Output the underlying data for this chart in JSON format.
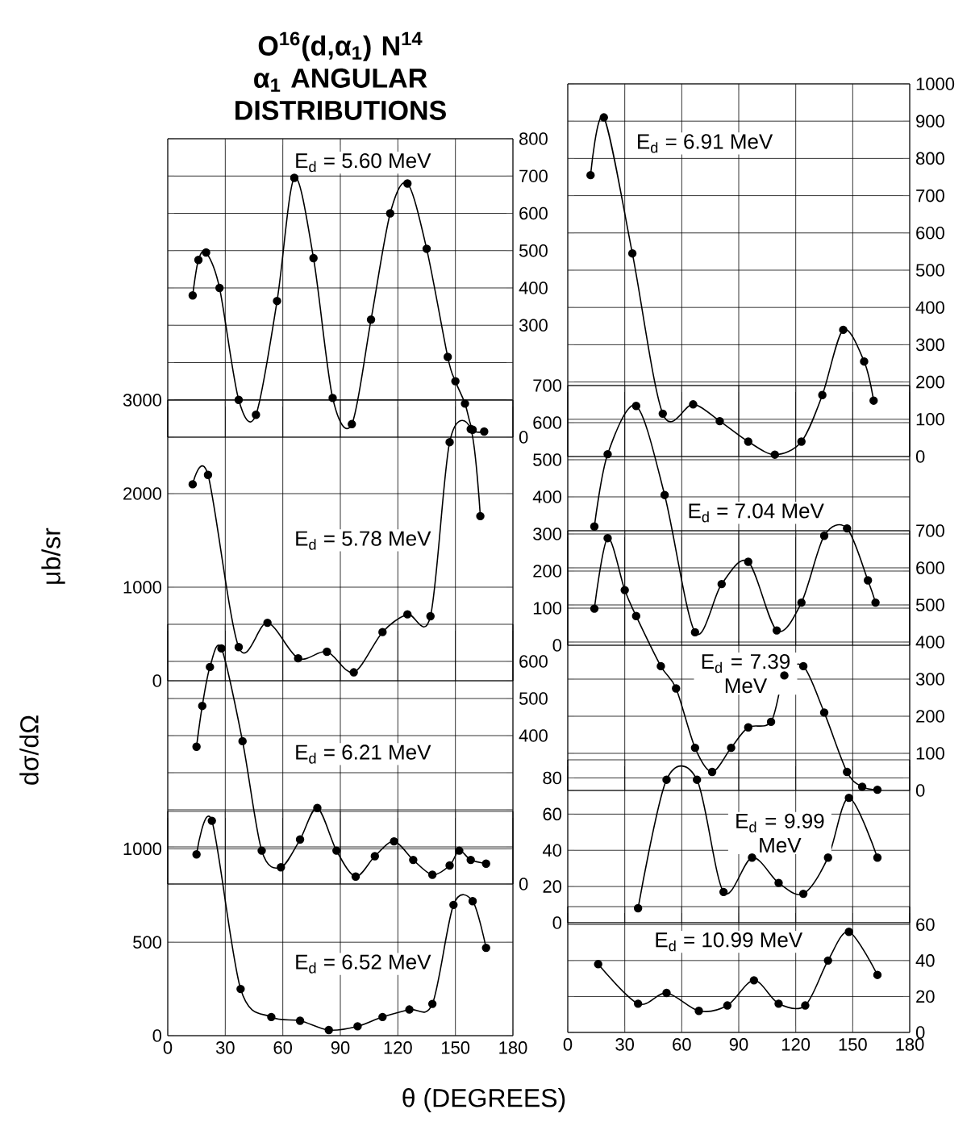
{
  "chart_data": [
    {
      "type": "line",
      "title": "O$^{16}$(d,α$_{1}$) N$^{14}$",
      "subtitle": "α$_{1}$ ANGULAR DISTRIBUTIONS",
      "annotations": [
        "E$_{d}$ = 5.60 MeV"
      ],
      "marker": "circle",
      "grid": true,
      "tick_labels": "y",
      "xlim": [
        0,
        180
      ],
      "xticks": [
        0,
        30,
        60,
        90,
        120,
        150,
        180
      ],
      "y2lim": [
        0,
        800
      ],
      "y2ticks": [
        0,
        {
          "value": 100,
          "label": null
        },
        {
          "value": 200,
          "label": null
        },
        300,
        400,
        500,
        600,
        700,
        800
      ],
      "series": [
        {
          "color": "#000000",
          "axis": "y2",
          "x": [
            13,
            16,
            20,
            27,
            37,
            46,
            57,
            66,
            76,
            86,
            96,
            106,
            116,
            125,
            135,
            146,
            150,
            155,
            159,
            165
          ],
          "values": [
            380,
            475,
            495,
            400,
            100,
            60,
            365,
            695,
            480,
            105,
            35,
            315,
            600,
            680,
            505,
            215,
            150,
            90,
            20,
            15
          ]
        }
      ]
    },
    {
      "type": "line",
      "ylabel": "μb/sr",
      "annotations": [
        "E$_{d}$ = 5.78 MeV"
      ],
      "marker": "circle",
      "grid": true,
      "tick_labels": "y",
      "xlim": [
        0,
        180
      ],
      "xticks": [
        0,
        30,
        60,
        90,
        120,
        150,
        180
      ],
      "ylim": [
        0,
        3000
      ],
      "yticks": [
        0,
        1000,
        2000,
        3000
      ],
      "series": [
        {
          "color": "#000000",
          "x": [
            13,
            21,
            37,
            52,
            68,
            83,
            97,
            112,
            125,
            137,
            147,
            158,
            163
          ],
          "values": [
            2100,
            2200,
            360,
            620,
            240,
            310,
            90,
            520,
            710,
            690,
            2550,
            2690,
            1760
          ]
        }
      ]
    },
    {
      "type": "line",
      "ylabel": "dσ/dΩ",
      "annotations": [
        "E$_{d}$ = 6.21 MeV"
      ],
      "marker": "circle",
      "grid": true,
      "tick_labels": "y",
      "xlim": [
        0,
        180
      ],
      "xticks": [
        0,
        30,
        60,
        90,
        120,
        150,
        180
      ],
      "y2lim": [
        0,
        700
      ],
      "y2ticks": [
        0,
        {
          "value": 100,
          "label": null
        },
        {
          "value": 200,
          "label": null
        },
        {
          "value": 300,
          "label": null
        },
        400,
        500,
        600
      ],
      "series": [
        {
          "color": "#000000",
          "axis": "y2",
          "x": [
            15,
            18,
            22,
            28,
            39,
            49,
            59,
            69,
            78,
            88,
            98,
            108,
            118,
            128,
            138,
            147,
            152,
            158,
            166
          ],
          "values": [
            370,
            480,
            585,
            635,
            385,
            90,
            45,
            120,
            205,
            90,
            20,
            75,
            115,
            65,
            25,
            50,
            90,
            65,
            55
          ]
        }
      ]
    },
    {
      "type": "line",
      "xlabel": "θ  (DEGREES)",
      "annotations": [
        "E$_{d}$ = 6.52 MeV"
      ],
      "marker": "circle",
      "grid": true,
      "xlim": [
        0,
        180
      ],
      "xticks": [
        0,
        30,
        60,
        90,
        120,
        150,
        180
      ],
      "ylim": [
        0,
        1200
      ],
      "yticks": [
        0,
        500,
        1000
      ],
      "series": [
        {
          "color": "#000000",
          "x": [
            15,
            23,
            38,
            54,
            69,
            84,
            99,
            112,
            126,
            138,
            149,
            159,
            166
          ],
          "values": [
            970,
            1150,
            250,
            100,
            80,
            30,
            50,
            100,
            140,
            170,
            700,
            720,
            470
          ]
        }
      ]
    },
    {
      "type": "line",
      "annotations": [
        "E$_{d}$ = 6.91 MeV"
      ],
      "marker": "circle",
      "grid": true,
      "tick_labels": "y",
      "xlim": [
        0,
        180
      ],
      "xticks": [
        0,
        30,
        60,
        90,
        120,
        150,
        180
      ],
      "y2lim": [
        0,
        1000
      ],
      "y2ticks": [
        0,
        100,
        200,
        300,
        400,
        500,
        600,
        700,
        800,
        900,
        1000
      ],
      "series": [
        {
          "color": "#000000",
          "axis": "y2",
          "x": [
            12,
            19,
            34,
            50,
            66,
            80,
            95,
            109,
            123,
            134,
            145,
            156,
            161
          ],
          "values": [
            755,
            910,
            545,
            115,
            140,
            95,
            40,
            5,
            40,
            165,
            340,
            255,
            150
          ]
        }
      ]
    },
    {
      "type": "line",
      "annotations": [
        "E$_{d}$ = 7.04 MeV"
      ],
      "marker": "circle",
      "grid": true,
      "tick_labels": "y",
      "xlim": [
        0,
        180
      ],
      "xticks": [
        0,
        30,
        60,
        90,
        120,
        150,
        180
      ],
      "ylim": [
        0,
        700
      ],
      "yticks": [
        0,
        100,
        200,
        300,
        400,
        500,
        600,
        700
      ],
      "series": [
        {
          "color": "#000000",
          "x": [
            14,
            21,
            36,
            51,
            67,
            81,
            95,
            110,
            123,
            135,
            147,
            158,
            162
          ],
          "values": [
            320,
            515,
            645,
            405,
            35,
            165,
            225,
            40,
            115,
            295,
            315,
            175,
            115
          ]
        }
      ]
    },
    {
      "type": "line",
      "annotations": [
        "E$_{d}$ = 7.39 MeV"
      ],
      "marker": "circle",
      "grid": true,
      "tick_labels": "y",
      "xlim": [
        0,
        180
      ],
      "xticks": [
        0,
        30,
        60,
        90,
        120,
        150,
        180
      ],
      "y2lim": [
        0,
        700
      ],
      "y2ticks": [
        0,
        100,
        200,
        300,
        400,
        500,
        600,
        700
      ],
      "series": [
        {
          "color": "#000000",
          "axis": "y2",
          "x": [
            14,
            21,
            30,
            36,
            49,
            57,
            67,
            76,
            86,
            95,
            107,
            114,
            124,
            135,
            147,
            155,
            163
          ],
          "values": [
            490,
            680,
            540,
            470,
            335,
            275,
            115,
            50,
            115,
            170,
            185,
            310,
            335,
            210,
            50,
            10,
            2
          ]
        }
      ]
    },
    {
      "type": "line",
      "annotations": [
        "E$_{d}$ = 9.99 MeV"
      ],
      "marker": "circle",
      "grid": true,
      "tick_labels": "y",
      "xlim": [
        0,
        180
      ],
      "xticks": [
        0,
        30,
        60,
        90,
        120,
        150,
        180
      ],
      "ylim": [
        0,
        90
      ],
      "yticks": [
        0,
        20,
        40,
        60,
        80
      ],
      "series": [
        {
          "color": "#000000",
          "x": [
            37,
            52,
            68,
            82,
            97,
            111,
            124,
            137,
            148,
            163
          ],
          "values": [
            8,
            79,
            79,
            17,
            36,
            22,
            16,
            36,
            69,
            36
          ]
        }
      ]
    },
    {
      "type": "line",
      "annotations": [
        "E$_{d}$ = 10.99 MeV"
      ],
      "marker": "circle",
      "grid": true,
      "xlim": [
        0,
        180
      ],
      "xticks": [
        0,
        30,
        60,
        90,
        120,
        150,
        180
      ],
      "y2lim": [
        0,
        70
      ],
      "y2ticks": [
        0,
        20,
        40,
        60
      ],
      "series": [
        {
          "color": "#000000",
          "axis": "y2",
          "x": [
            16,
            37,
            52,
            69,
            84,
            98,
            111,
            125,
            137,
            148,
            163
          ],
          "values": [
            38,
            16,
            22,
            12,
            15,
            29,
            16,
            15,
            40,
            56,
            32
          ]
        }
      ]
    }
  ]
}
